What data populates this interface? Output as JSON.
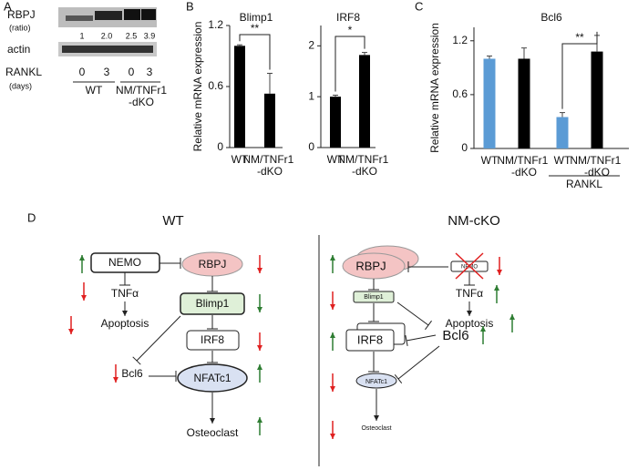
{
  "panel_labels": [
    "A",
    "B",
    "C",
    "D"
  ],
  "blot": {
    "rows": [
      "RBPJ",
      "actin"
    ],
    "ratio_label": "(ratio)",
    "ratios": [
      "1",
      "2.0",
      "2.5",
      "3.9"
    ],
    "rankl_label": "RANKL",
    "days_label": "(days)",
    "days": [
      "0",
      "3",
      "0",
      "3"
    ],
    "groups": [
      "WT",
      "NM/TNFr1",
      "-dKO"
    ]
  },
  "chart_data": [
    {
      "type": "bar",
      "title": "Blimp1",
      "y_label": "Relative mRNA expression",
      "categories": [
        "WT",
        "NM/TNFr1 -dKO"
      ],
      "values": [
        1.0,
        0.53
      ],
      "errors": [
        0.01,
        0.2
      ],
      "color": "#000000",
      "ylim": [
        0,
        1.2
      ],
      "yticks": [
        0,
        0.6,
        1.2
      ],
      "significance": "**"
    },
    {
      "type": "bar",
      "title": "IRF8",
      "categories": [
        "WT",
        "NM/TNFr1 -dKO"
      ],
      "values": [
        1.0,
        1.82
      ],
      "errors": [
        0.03,
        0.05
      ],
      "color": "#000000",
      "ylim": [
        0,
        2.4
      ],
      "yticks": [
        0,
        1,
        2
      ],
      "significance": "*"
    },
    {
      "type": "bar",
      "title": "Bcl6",
      "y_label": "Relative mRNA expression",
      "categories": [
        "WT",
        "NM/TNFr1 -dKO",
        "WT",
        "NM/TNFr1 -dKO"
      ],
      "values": [
        1.0,
        1.0,
        0.35,
        1.08
      ],
      "errors": [
        0.03,
        0.12,
        0.05,
        0.18
      ],
      "colors": [
        "#5b9bd5",
        "#000000",
        "#5b9bd5",
        "#000000"
      ],
      "ylim": [
        0,
        1.35
      ],
      "yticks": [
        0,
        0.6,
        1.2
      ],
      "significance": "**",
      "group_label": "RANKL"
    }
  ],
  "diagram": {
    "wt": {
      "title": "WT",
      "nemo": "NEMO",
      "rbpj": "RBPJ",
      "tnfa": "TNFα",
      "apoptosis": "Apoptosis",
      "blimp1": "Blimp1",
      "irf8": "IRF8",
      "bcl6": "Bcl6",
      "nfatc1": "NFATc1",
      "osteoclast": "Osteoclast"
    },
    "ko": {
      "title": "NM-cKO",
      "nemo": "NEMO",
      "rbpj": "RBPJ",
      "tnfa": "TNFα",
      "apoptosis": "Apoptosis",
      "blimp1": "Blimp1",
      "irf8": "IRF8",
      "bcl6": "Bcl6",
      "nfatc1": "NFATc1",
      "osteoclast": "Osteoclast"
    }
  }
}
